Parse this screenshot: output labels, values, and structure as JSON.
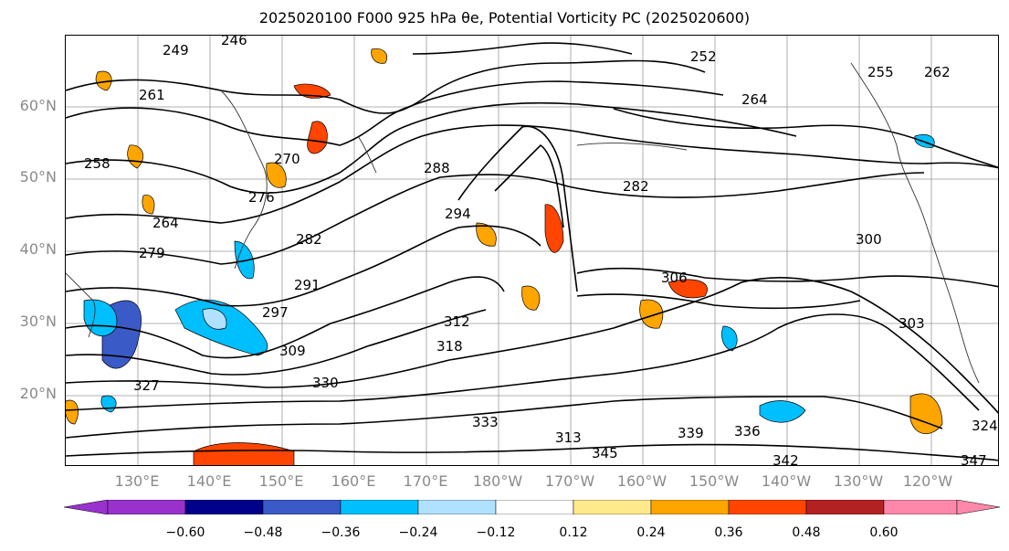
{
  "title": "2025020100 F000 925 hPa θe, Potential Vorticity PC (2025020600)",
  "latitude_labels": [
    "60°N",
    "50°N",
    "40°N",
    "30°N",
    "20°N"
  ],
  "longitude_labels": [
    "130°E",
    "140°E",
    "150°E",
    "160°E",
    "170°E",
    "180°W",
    "170°W",
    "160°W",
    "150°W",
    "140°W",
    "130°W",
    "120°W"
  ],
  "colorbar": {
    "ticks": [
      "−0.60",
      "−0.48",
      "−0.36",
      "−0.24",
      "−0.12",
      "0.12",
      "0.24",
      "0.36",
      "0.48",
      "0.60"
    ],
    "colors": [
      "#9932cc",
      "#00008b",
      "#3a5bc7",
      "#00bfff",
      "#b0e2ff",
      "#ffffff",
      "#ffe98a",
      "#ffa500",
      "#ff4500",
      "#b22222",
      "#ff88aa"
    ]
  },
  "contour_labels": [
    "249",
    "246",
    "261",
    "252",
    "258",
    "255",
    "262",
    "264",
    "270",
    "276",
    "264",
    "279",
    "282",
    "288",
    "294",
    "291",
    "297",
    "300",
    "306",
    "303",
    "309",
    "312",
    "318",
    "327",
    "330",
    "333",
    "336",
    "339",
    "342",
    "345",
    "347",
    "324",
    "313",
    "282"
  ]
}
